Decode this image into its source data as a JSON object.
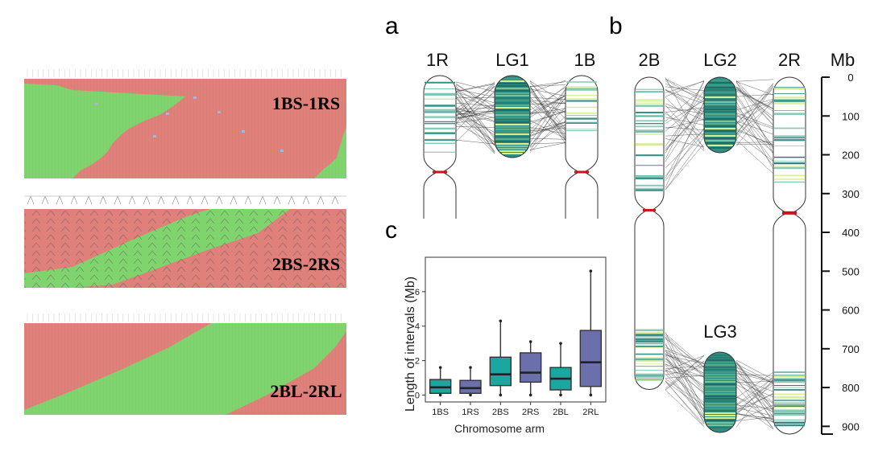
{
  "left_panels": [
    {
      "label": "1BS-1RS"
    },
    {
      "label": "2BS-2RS"
    },
    {
      "label": "2BL-2RL"
    }
  ],
  "panel_a": {
    "letter": "a",
    "chromosomes": [
      "1R",
      "LG1",
      "1B"
    ]
  },
  "panel_b": {
    "letter": "b",
    "chromosomes": [
      "2B",
      "LG2",
      "2R"
    ],
    "lg3_label": "LG3"
  },
  "mb_axis": {
    "unit": "Mb",
    "ticks": [
      "0",
      "100",
      "200",
      "300",
      "400",
      "500",
      "600",
      "700",
      "800",
      "900"
    ],
    "tick_values": [
      0,
      100,
      200,
      300,
      400,
      500,
      600,
      700,
      800,
      900
    ],
    "range": [
      0,
      920
    ]
  },
  "panel_c": {
    "letter": "c"
  },
  "chart_data": {
    "type": "boxplot",
    "title": "",
    "xlabel": "Chromosome arm",
    "ylabel": "Length of intervals (Mb)",
    "ylim": [
      -0.4,
      8.0
    ],
    "yticks": [
      "0",
      "2",
      "4",
      "6"
    ],
    "ytick_values": [
      0,
      2,
      4,
      6
    ],
    "categories": [
      "1BS",
      "1RS",
      "2BS",
      "2RS",
      "2BL",
      "2RL"
    ],
    "colors": [
      "#1aa7a0",
      "#6b70ad",
      "#1aa7a0",
      "#6b70ad",
      "#1aa7a0",
      "#6b70ad"
    ],
    "boxes": [
      {
        "min": 0.0,
        "q1": 0.1,
        "median": 0.45,
        "q3": 0.9,
        "max": 1.6
      },
      {
        "min": 0.0,
        "q1": 0.1,
        "median": 0.4,
        "q3": 0.85,
        "max": 1.6
      },
      {
        "min": 0.0,
        "q1": 0.55,
        "median": 1.2,
        "q3": 2.2,
        "max": 4.3
      },
      {
        "min": 0.0,
        "q1": 0.75,
        "median": 1.3,
        "q3": 2.45,
        "max": 3.1
      },
      {
        "min": 0.0,
        "q1": 0.3,
        "median": 0.95,
        "q3": 1.6,
        "max": 3.0
      },
      {
        "min": 0.0,
        "q1": 0.5,
        "median": 1.9,
        "q3": 3.75,
        "max": 7.2
      }
    ]
  }
}
